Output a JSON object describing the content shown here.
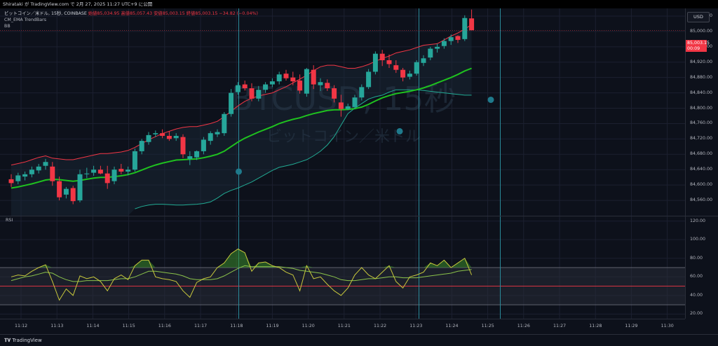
{
  "topbar": {
    "text": "Shirataki が TradingView.com で 2月 27, 2025 11:27 UTC+9 に公開"
  },
  "legend": {
    "symbol": "ビットコイン／米ドル, 15秒, COINBASE",
    "ohlc": "始値85,034.95 高値85,057.43 安値85,003.15 終値85,003.15 −34.82 (−0.04%)",
    "indicator1": "CM_EMA TrendBars",
    "indicator2": "BB"
  },
  "watermark": {
    "ticker": "BTCUSD, 15秒",
    "name": "ビットコイン／米ドル"
  },
  "rsi_label": "RSI",
  "currency_button": "USD",
  "last_price": {
    "value": "85,003.15",
    "countdown": "00:09"
  },
  "footer": {
    "brand": "TradingView"
  },
  "price_axis": [
    "85,040.00",
    "85,000.00",
    "84,960.00",
    "84,920.00",
    "84,880.00",
    "84,840.00",
    "84,800.00",
    "84,760.00",
    "84,720.00",
    "84,680.00",
    "84,640.00",
    "84,600.00",
    "84,560.00"
  ],
  "rsi_axis": [
    "120.00",
    "100.00",
    "80.00",
    "60.00",
    "40.00",
    "20.00"
  ],
  "time_axis": [
    "11:12",
    "11:13",
    "11:14",
    "11:15",
    "11:16",
    "11:17",
    "11:18",
    "11:19",
    "11:20",
    "11:21",
    "11:22",
    "11:23",
    "11:24",
    "11:25",
    "11:26",
    "11:27",
    "11:28",
    "11:29",
    "11:30"
  ],
  "colors": {
    "up": "#26a69a",
    "down": "#f23645",
    "bb_upper": "#f23645",
    "bb_lower": "#22ab94",
    "ema": "#1fc21f",
    "rsi": "#c8c83c",
    "rsi_ma": "#8bc34a",
    "vline": "#2a8a9a"
  },
  "chart_data": {
    "type": "candlestick",
    "candles": [
      [
        84615,
        84628,
        84595,
        84605
      ],
      [
        84610,
        84632,
        84602,
        84625
      ],
      [
        84622,
        84635,
        84612,
        84628
      ],
      [
        84628,
        84648,
        84620,
        84640
      ],
      [
        84638,
        84655,
        84630,
        84648
      ],
      [
        84650,
        84668,
        84640,
        84660
      ],
      [
        84648,
        84660,
        84598,
        84610
      ],
      [
        84610,
        84622,
        84560,
        84568
      ],
      [
        84575,
        84595,
        84565,
        84590
      ],
      [
        84592,
        84598,
        84550,
        84558
      ],
      [
        84560,
        84640,
        84555,
        84628
      ],
      [
        84628,
        84645,
        84618,
        84630
      ],
      [
        84632,
        84650,
        84624,
        84640
      ],
      [
        84640,
        84650,
        84628,
        84630
      ],
      [
        84630,
        84650,
        84590,
        84605
      ],
      [
        84610,
        84648,
        84602,
        84640
      ],
      [
        84642,
        84655,
        84628,
        84635
      ],
      [
        84635,
        84648,
        84625,
        84640
      ],
      [
        84640,
        84695,
        84635,
        84688
      ],
      [
        84688,
        84720,
        84680,
        84715
      ],
      [
        84712,
        84738,
        84705,
        84730
      ],
      [
        84732,
        84742,
        84725,
        84735
      ],
      [
        84735,
        84745,
        84722,
        84728
      ],
      [
        84728,
        84740,
        84715,
        84720
      ],
      [
        84722,
        84735,
        84715,
        84728
      ],
      [
        84725,
        84732,
        84670,
        84680
      ],
      [
        84668,
        84688,
        84652,
        84675
      ],
      [
        84672,
        84690,
        84665,
        84688
      ],
      [
        84688,
        84725,
        84680,
        84718
      ],
      [
        84715,
        84740,
        84705,
        84735
      ],
      [
        84732,
        84745,
        84725,
        84738
      ],
      [
        84735,
        84790,
        84728,
        84785
      ],
      [
        84785,
        84850,
        84778,
        84840
      ],
      [
        84842,
        84868,
        84835,
        84860
      ],
      [
        84862,
        84872,
        84846,
        84852
      ],
      [
        84852,
        84865,
        84818,
        84825
      ],
      [
        84825,
        84858,
        84818,
        84848
      ],
      [
        84848,
        84868,
        84840,
        84862
      ],
      [
        84862,
        84878,
        84855,
        84870
      ],
      [
        84870,
        84895,
        84862,
        84888
      ],
      [
        84890,
        84900,
        84872,
        84878
      ],
      [
        84880,
        84895,
        84860,
        84870
      ],
      [
        84872,
        84888,
        84838,
        84846
      ],
      [
        84838,
        84905,
        84830,
        84902
      ],
      [
        84900,
        84912,
        84850,
        84862
      ],
      [
        84860,
        84878,
        84845,
        84868
      ],
      [
        84866,
        84875,
        84845,
        84852
      ],
      [
        84852,
        84860,
        84815,
        84825
      ],
      [
        84815,
        84835,
        84778,
        84798
      ],
      [
        84798,
        84812,
        84795,
        84805
      ],
      [
        84803,
        84835,
        84798,
        84828
      ],
      [
        84828,
        84862,
        84820,
        84855
      ],
      [
        84855,
        84902,
        84850,
        84895
      ],
      [
        84895,
        84948,
        84888,
        84942
      ],
      [
        84942,
        84952,
        84910,
        84925
      ],
      [
        84925,
        84940,
        84905,
        84915
      ],
      [
        84912,
        84925,
        84892,
        84900
      ],
      [
        84900,
        84905,
        84870,
        84880
      ],
      [
        84882,
        84898,
        84875,
        84890
      ],
      [
        84890,
        84925,
        84885,
        84920
      ],
      [
        84918,
        84938,
        84910,
        84930
      ],
      [
        84932,
        84960,
        84925,
        84955
      ],
      [
        84955,
        84968,
        84945,
        84960
      ],
      [
        84962,
        84982,
        84955,
        84975
      ],
      [
        84975,
        84992,
        84965,
        84985
      ],
      [
        84988,
        84990,
        84970,
        84978
      ],
      [
        84980,
        85042,
        84975,
        85035
      ],
      [
        85034,
        85057,
        85003,
        85003
      ]
    ],
    "bb_upper": [
      84652,
      84656,
      84660,
      84666,
      84672,
      84676,
      84670,
      84668,
      84666,
      84666,
      84670,
      84674,
      84678,
      84682,
      84682,
      84684,
      84686,
      84690,
      84698,
      84708,
      84718,
      84726,
      84734,
      84740,
      84746,
      84750,
      84752,
      84752,
      84756,
      84760,
      84766,
      84778,
      84792,
      84806,
      84818,
      84826,
      84832,
      84836,
      84840,
      84848,
      84856,
      84866,
      84876,
      84886,
      84898,
      84908,
      84912,
      84912,
      84908,
      84904,
      84904,
      84908,
      84914,
      84922,
      84930,
      84936,
      84944,
      84948,
      84952,
      84958,
      84964,
      84966,
      84968,
      84978,
      84988,
      84996,
      85006,
      85018
    ],
    "bb_lower": [
      null,
      null,
      null,
      null,
      null,
      null,
      null,
      null,
      null,
      null,
      null,
      null,
      null,
      null,
      null,
      null,
      null,
      null,
      84538,
      84544,
      84548,
      84550,
      84550,
      84549,
      84548,
      84548,
      84549,
      84550,
      84552,
      84556,
      84566,
      84578,
      84586,
      84592,
      84600,
      84608,
      84618,
      84628,
      84638,
      84646,
      84650,
      84654,
      84660,
      84666,
      84676,
      84688,
      84704,
      84726,
      84756,
      84786,
      84800,
      84812,
      84824,
      84830,
      84834,
      84842,
      84848,
      84848,
      84848,
      84848,
      84846,
      84844,
      84842,
      84840,
      84838,
      84836,
      84834,
      84834
    ],
    "ema": [
      84592,
      84595,
      84599,
      84603,
      84608,
      84613,
      84615,
      84614,
      84612,
      84610,
      84612,
      84615,
      84618,
      84620,
      84620,
      84622,
      84624,
      84627,
      84632,
      84639,
      84646,
      84652,
      84657,
      84661,
      84665,
      84666,
      84667,
      84668,
      84671,
      84675,
      84680,
      84688,
      84700,
      84712,
      84722,
      84730,
      84738,
      84745,
      84752,
      84760,
      84766,
      84771,
      84775,
      84781,
      84786,
      84790,
      84794,
      84796,
      84796,
      84797,
      84799,
      84803,
      84810,
      84819,
      84827,
      84833,
      84838,
      84841,
      84844,
      84848,
      84853,
      84859,
      84866,
      84873,
      84880,
      84888,
      84897,
      84904
    ],
    "rsi": [
      60,
      62,
      61,
      66,
      70,
      73,
      55,
      35,
      47,
      40,
      61,
      58,
      60,
      55,
      45,
      58,
      62,
      57,
      72,
      78,
      78,
      60,
      58,
      57,
      55,
      45,
      38,
      54,
      58,
      60,
      70,
      75,
      85,
      90,
      86,
      66,
      75,
      76,
      72,
      70,
      65,
      62,
      45,
      72,
      58,
      60,
      52,
      45,
      40,
      48,
      62,
      70,
      62,
      58,
      65,
      72,
      55,
      48,
      60,
      62,
      65,
      75,
      72,
      78,
      70,
      75,
      80,
      62
    ],
    "rsi_ma": [
      56,
      58,
      60,
      61,
      63,
      65,
      64,
      60,
      57,
      55,
      55,
      56,
      56,
      56,
      56,
      57,
      58,
      58,
      60,
      63,
      66,
      66,
      65,
      64,
      63,
      61,
      58,
      57,
      57,
      57,
      58,
      61,
      65,
      69,
      72,
      71,
      71,
      71,
      71,
      71,
      70,
      69,
      67,
      66,
      65,
      64,
      62,
      60,
      57,
      56,
      56,
      57,
      58,
      58,
      59,
      60,
      60,
      59,
      59,
      59,
      60,
      61,
      62,
      63,
      64,
      66,
      67,
      68
    ],
    "price_range": [
      84520,
      85060
    ],
    "rsi_range": [
      15,
      125
    ],
    "rsi_bands": [
      70,
      50,
      30
    ]
  }
}
